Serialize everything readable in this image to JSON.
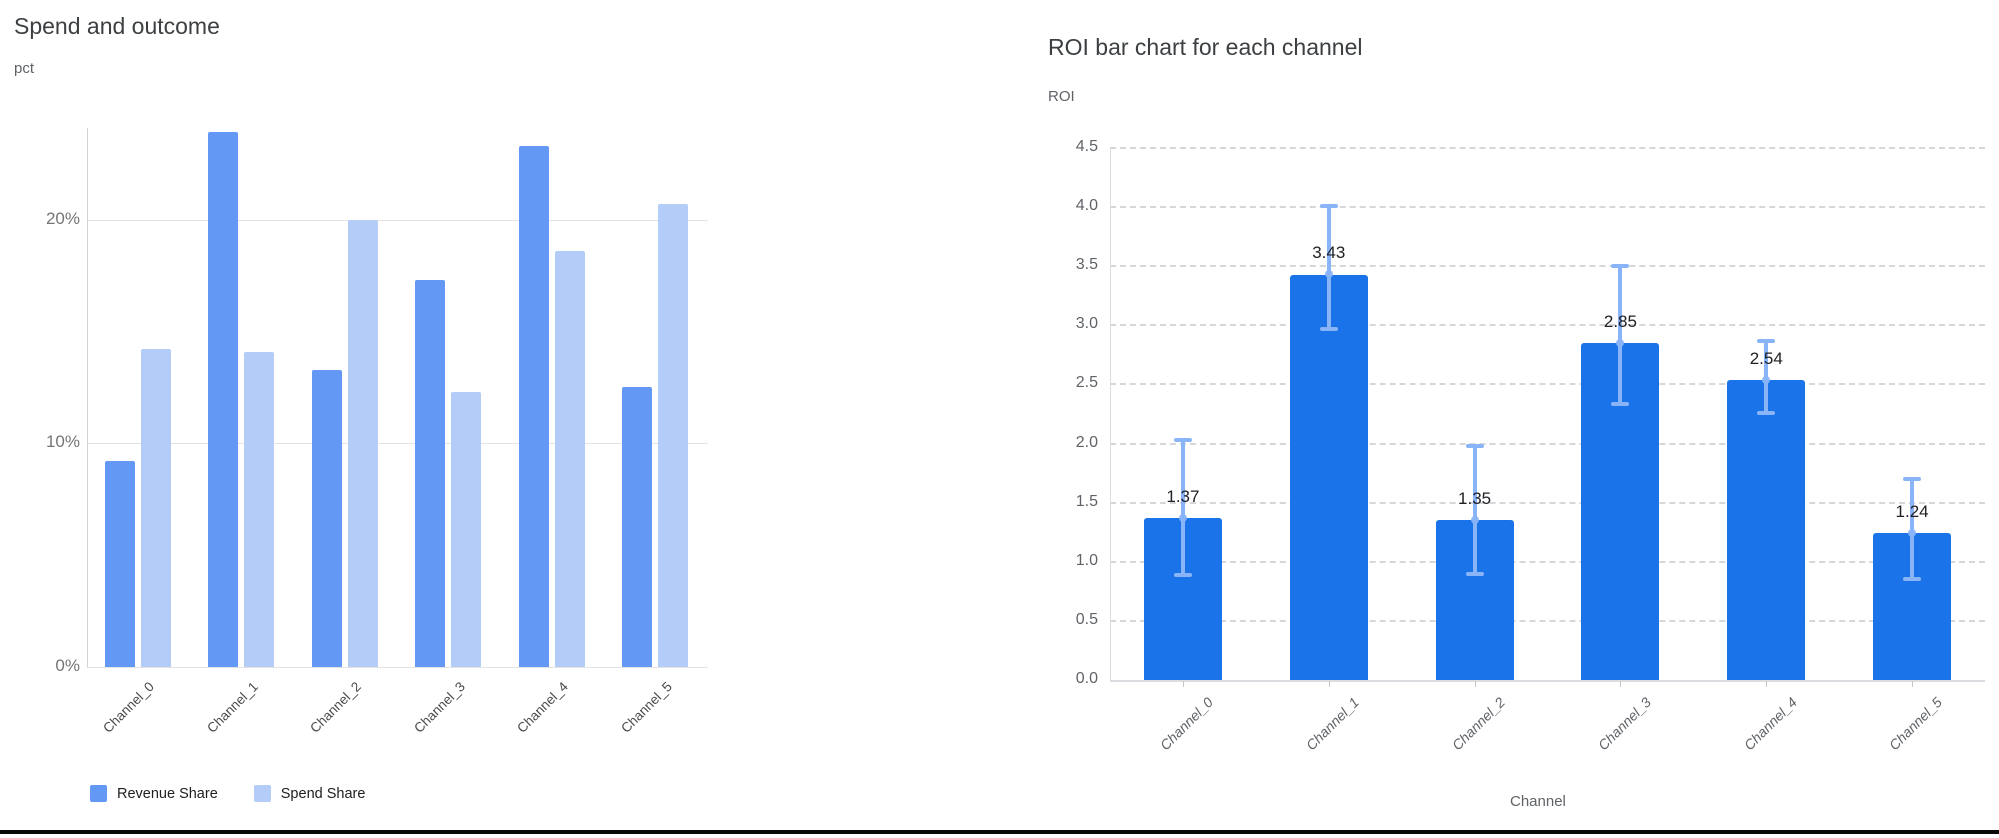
{
  "chart_data": [
    {
      "type": "bar",
      "title": "Spend and outcome",
      "ylabel": "pct",
      "xlabel": "",
      "categories": [
        "Channel_0",
        "Channel_1",
        "Channel_2",
        "Channel_3",
        "Channel_4",
        "Channel_5"
      ],
      "series": [
        {
          "name": "Revenue Share",
          "color": "#6398f5",
          "values": [
            9.2,
            23.9,
            13.3,
            17.3,
            23.3,
            12.5
          ]
        },
        {
          "name": "Spend Share",
          "color": "#b3ccf8",
          "values": [
            14.2,
            14.1,
            20.0,
            12.3,
            18.6,
            20.7
          ]
        }
      ],
      "y_ticks": [
        {
          "value": 0,
          "label": "0%"
        },
        {
          "value": 10,
          "label": "10%"
        },
        {
          "value": 20,
          "label": "20%"
        }
      ],
      "ylim": [
        0,
        24.1
      ],
      "grid": "horizontal-solid",
      "legend_position": "bottom"
    },
    {
      "type": "bar",
      "title": "ROI bar chart for each channel",
      "ylabel": "ROI",
      "xlabel": "Channel",
      "categories": [
        "Channel_0",
        "Channel_1",
        "Channel_2",
        "Channel_3",
        "Channel_4",
        "Channel_5"
      ],
      "series": [
        {
          "name": "ROI",
          "color": "#1a73e8",
          "values": [
            1.37,
            3.43,
            1.35,
            2.85,
            2.54,
            1.24
          ]
        }
      ],
      "bar_labels": [
        "1.37",
        "3.43",
        "1.35",
        "2.85",
        "2.54",
        "1.24"
      ],
      "error_bars": {
        "color": "#8ab4f8",
        "low": [
          0.88,
          2.96,
          0.89,
          2.33,
          2.25,
          0.85
        ],
        "high": [
          2.04,
          4.02,
          1.99,
          3.51,
          2.88,
          1.71
        ]
      },
      "y_tick_labels": [
        "0.0",
        "0.5",
        "1.0",
        "1.5",
        "2.0",
        "2.5",
        "3.0",
        "3.5",
        "4.0",
        "4.5"
      ],
      "y_tick_step": 0.5,
      "ylim": [
        0,
        4.5
      ],
      "grid": "horizontal-dashed",
      "legend_position": "none"
    }
  ],
  "colors": {
    "revenue_bar": "#6398f5",
    "spend_bar": "#b3ccf8",
    "roi_bar": "#1a73e8",
    "error_bar": "#8ab4f8",
    "grid_solid": "#e3e3e3",
    "grid_dashed": "#d5d7da",
    "bottom_rule": "#0a0a0a"
  }
}
